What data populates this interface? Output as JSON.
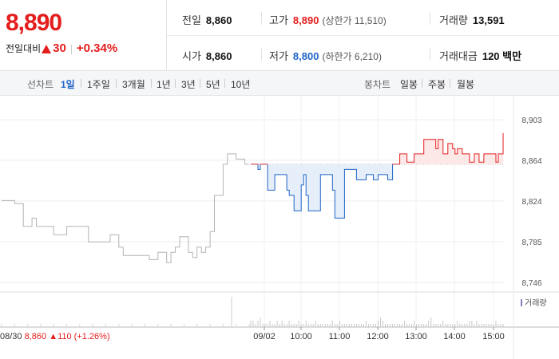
{
  "quote": {
    "price": "8,890",
    "change_label": "전일대비",
    "change_value": "30",
    "change_percent": "+0.34%"
  },
  "summary": [
    {
      "label": "전일",
      "value": "8,860",
      "sub": ""
    },
    {
      "label": "고가",
      "value": "8,890",
      "sub": "(상한가 11,510)"
    },
    {
      "label": "거래량",
      "value": "13,591",
      "sub": ""
    },
    {
      "label": "시가",
      "value": "8,860",
      "sub": ""
    },
    {
      "label": "저가",
      "value": "8,800",
      "sub": "(하한가 6,210)"
    },
    {
      "label": "거래대금",
      "value": "120 백만",
      "sub": ""
    }
  ],
  "tabs": {
    "line_label": "선차트",
    "line_items": [
      "1일",
      "1주일",
      "3개월",
      "1년",
      "3년",
      "5년",
      "10년"
    ],
    "active": "1일",
    "candle_label": "봉차트",
    "candle_items": [
      "일봉",
      "주봉",
      "월봉"
    ]
  },
  "colors": {
    "up": "#e41d1d",
    "down": "#1e64c8",
    "prev_day": "#b4b4b4"
  },
  "chart_data": {
    "type": "line",
    "ylim": [
      8746,
      8903
    ],
    "y_ticks": [
      "8,903",
      "8,864",
      "8,824",
      "8,785",
      "8,746"
    ],
    "x_ticks": [
      "09/02",
      "10:00",
      "11:00",
      "12:00",
      "13:00",
      "14:00",
      "15:00"
    ],
    "reference_price": 8860,
    "prev_day": {
      "label": "08/30",
      "close": "8,860",
      "change": "110",
      "change_percent": "(+1.26%)",
      "values": [
        8825,
        8825,
        8825,
        8822,
        8822,
        8800,
        8800,
        8808,
        8800,
        8800,
        8800,
        8800,
        8792,
        8792,
        8792,
        8800,
        8800,
        8800,
        8800,
        8800,
        8785,
        8785,
        8785,
        8785,
        8785,
        8792,
        8792,
        8780,
        8772,
        8772,
        8772,
        8772,
        8772,
        8772,
        8768,
        8768,
        8775,
        8775,
        8765,
        8775,
        8780,
        8790,
        8790,
        8775,
        8770,
        8780,
        8775,
        8780,
        8795,
        8830,
        8830,
        8860,
        8870,
        8870,
        8865,
        8865,
        8860,
        8860
      ]
    },
    "today": {
      "values": [
        8860,
        8860,
        8860,
        8855,
        8860,
        8860,
        8860,
        8835,
        8835,
        8835,
        8850,
        8850,
        8850,
        8850,
        8850,
        8835,
        8830,
        8830,
        8815,
        8815,
        8815,
        8840,
        8850,
        8830,
        8815,
        8815,
        8815,
        8815,
        8815,
        8850,
        8850,
        8850,
        8850,
        8850,
        8835,
        8808,
        8808,
        8808,
        8808,
        8855,
        8855,
        8855,
        8855,
        8855,
        8845,
        8845,
        8845,
        8845,
        8850,
        8850,
        8850,
        8845,
        8845,
        8850,
        8850,
        8850,
        8850,
        8845,
        8845,
        8860,
        8860,
        8860,
        8870,
        8870,
        8870,
        8862,
        8862,
        8862,
        8870,
        8870,
        8870,
        8870,
        8884,
        8884,
        8884,
        8884,
        8884,
        8875,
        8884,
        8884,
        8870,
        8870,
        8880,
        8880,
        8875,
        8870,
        8875,
        8875,
        8870,
        8870,
        8870,
        8862,
        8862,
        8870,
        8870,
        8862,
        8862,
        8870,
        8870,
        8870,
        8870,
        8870,
        8862,
        8870,
        8870,
        8890
      ],
      "volume": [
        2,
        2,
        1,
        2,
        3,
        1,
        1,
        1,
        2,
        1,
        1,
        2,
        1,
        2,
        1,
        1,
        2,
        1,
        1,
        1,
        2,
        1,
        1,
        2,
        1,
        1,
        1,
        2,
        1,
        1,
        1,
        1,
        1,
        1,
        2,
        1,
        1,
        2,
        1,
        1,
        1,
        1,
        1,
        1,
        1,
        1,
        1,
        1,
        2,
        1,
        1,
        1,
        1,
        2,
        3,
        2,
        1,
        1,
        1,
        1,
        1,
        1,
        1,
        1,
        2,
        1,
        1,
        1,
        2,
        1,
        1,
        1,
        1,
        1,
        2,
        3,
        1,
        1,
        1,
        1,
        2,
        1,
        1,
        1,
        1,
        1,
        2,
        1,
        1,
        1,
        1,
        2,
        2,
        1,
        2,
        1,
        1,
        1,
        1,
        1,
        1,
        1,
        2,
        1,
        1,
        1
      ]
    },
    "volume_legend": "거래량"
  }
}
